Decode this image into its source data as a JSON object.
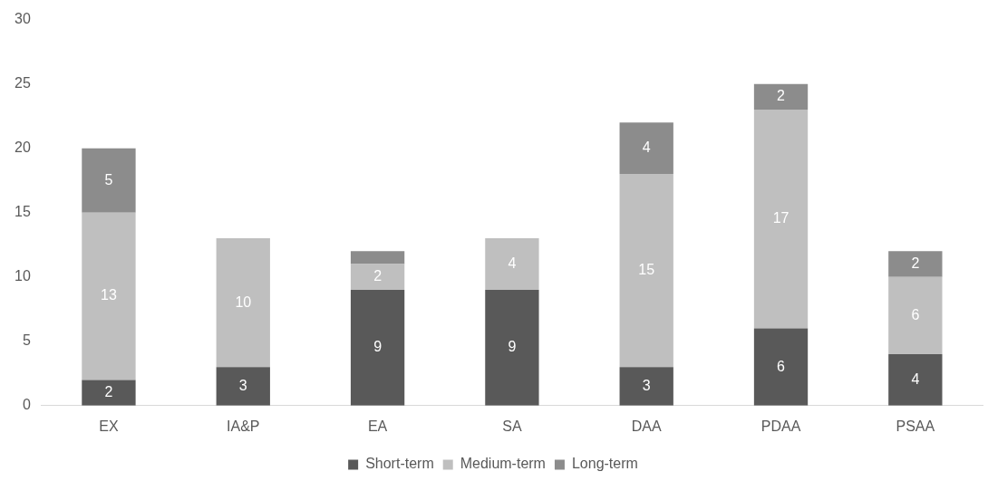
{
  "chart_data": {
    "type": "bar",
    "stacked": true,
    "categories": [
      "EX",
      "IA&P",
      "EA",
      "SA",
      "DAA",
      "PDAA",
      "PSAA"
    ],
    "series": [
      {
        "name": "Short-term",
        "color": "#595959",
        "values": [
          2,
          3,
          9,
          9,
          3,
          6,
          4
        ],
        "value_labels": [
          "2",
          "3",
          "9",
          "9",
          "3",
          "6",
          "4"
        ]
      },
      {
        "name": "Medium-term",
        "color": "#bfbfbf",
        "values": [
          13,
          10,
          2,
          4,
          15,
          17,
          6
        ],
        "value_labels": [
          "13",
          "10",
          "2",
          "4",
          "15",
          "17",
          "6"
        ]
      },
      {
        "name": "Long-term",
        "color": "#8c8c8c",
        "values": [
          5,
          null,
          1,
          null,
          4,
          2,
          2
        ],
        "value_labels": [
          "5",
          null,
          null,
          null,
          "4",
          "2",
          "2"
        ]
      }
    ],
    "ylim": [
      0,
      30
    ],
    "yticks": [
      0,
      5,
      10,
      15,
      20,
      25,
      30
    ],
    "grid": false,
    "legend": "bottom"
  }
}
